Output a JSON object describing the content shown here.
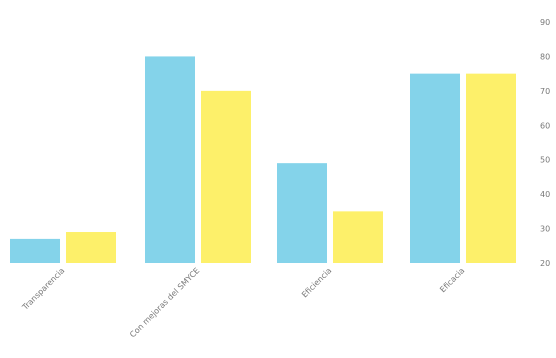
{
  "chart_data": {
    "type": "bar",
    "categories": [
      "Transparencia",
      "Con mejoras del SMYCE",
      "Eficiencia",
      "Eficacia"
    ],
    "series": [
      {
        "values": [
          27,
          80,
          49,
          75
        ]
      },
      {
        "values": [
          29,
          70,
          35,
          75
        ]
      }
    ],
    "ylim": [
      20,
      90
    ],
    "yticks": [
      20,
      30,
      40,
      50,
      60,
      70,
      80,
      90
    ],
    "yaxis_position": "right",
    "grid": false,
    "legend": "none",
    "colors": [
      "#84d3ea",
      "#fdf06a"
    ],
    "tick_color": "#777777"
  }
}
